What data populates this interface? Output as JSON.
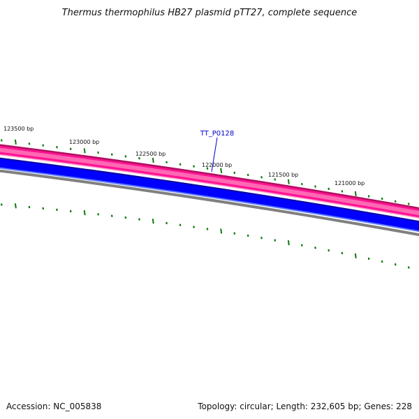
{
  "title": "Thermus thermophilus HB27 plasmid pTT27, complete sequence",
  "footer": {
    "accession": "Accession: NC_005838",
    "summary": "Topology: circular; Length: 232,605 bp; Genes: 228"
  },
  "tick_labels": [
    "123500 bp",
    "123000 bp",
    "122500 bp",
    "122000 bp",
    "121500 bp",
    "121000 bp"
  ],
  "gene": {
    "name": "TT_P0128",
    "color": "#0000cc"
  },
  "colors": {
    "forward_strand": "#ff1493",
    "forward_strand_edge": "#b0105e",
    "reverse_strand": "#0000ff",
    "reverse_strand_edge": "#0a0aa0",
    "backbone": "#808080",
    "ticks": "#0a7a0a"
  }
}
